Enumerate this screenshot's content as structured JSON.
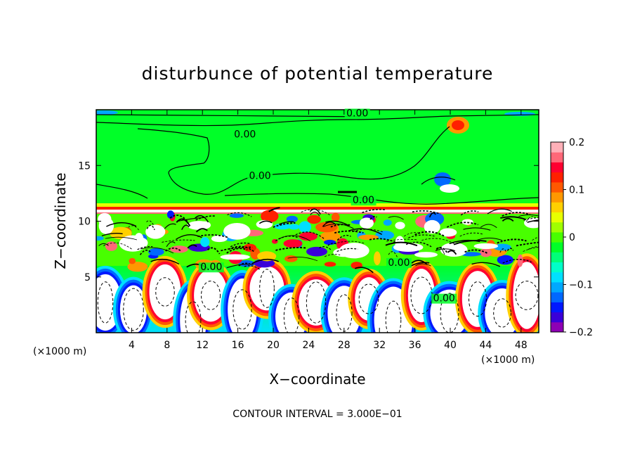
{
  "chart_data": {
    "type": "heatmap",
    "title": "disturbunce of potential temperature",
    "xlabel": "X−coordinate",
    "ylabel": "Z−coordinate",
    "x_unit": "(×1000 m)",
    "z_unit": "(×1000 m)",
    "xlim": [
      0,
      50
    ],
    "ylim": [
      0,
      20
    ],
    "x_ticks": [
      4,
      8,
      12,
      16,
      20,
      24,
      28,
      32,
      36,
      40,
      44,
      48
    ],
    "y_ticks": [
      5,
      10,
      15
    ],
    "colorbar": {
      "range": [
        -0.2,
        0.2
      ],
      "tick_values": [
        0.2,
        0.1,
        0,
        -0.1,
        -0.2
      ],
      "tick_labels": [
        "0.2",
        "0.1",
        "0",
        "−0.1",
        "−0.2"
      ],
      "colors": [
        "#8e00b4",
        "#3a00d8",
        "#0018ff",
        "#0068ff",
        "#00a8ff",
        "#00e0ff",
        "#00ffc8",
        "#00ff78",
        "#00ff28",
        "#48ff00",
        "#a0ff00",
        "#e8ff00",
        "#ffd000",
        "#ff9800",
        "#ff5800",
        "#ff2000",
        "#ff0030",
        "#ff6878",
        "#ffb0b8"
      ]
    },
    "contour_labels": [
      {
        "text": "0.00",
        "x": 16.8,
        "z": 17.5
      },
      {
        "text": "0.00",
        "x": 29.5,
        "z": 19.4
      },
      {
        "text": "0.00",
        "x": 18.5,
        "z": 13.8
      },
      {
        "text": "0.00",
        "x": 30.2,
        "z": 11.6
      },
      {
        "text": "0.00",
        "x": 13.0,
        "z": 5.6
      },
      {
        "text": "0.00",
        "x": 34.2,
        "z": 6.0
      },
      {
        "text": "0.00",
        "x": 39.3,
        "z": 2.8
      }
    ],
    "annotation": "CONTOUR INTERVAL = 3.000E−01"
  }
}
